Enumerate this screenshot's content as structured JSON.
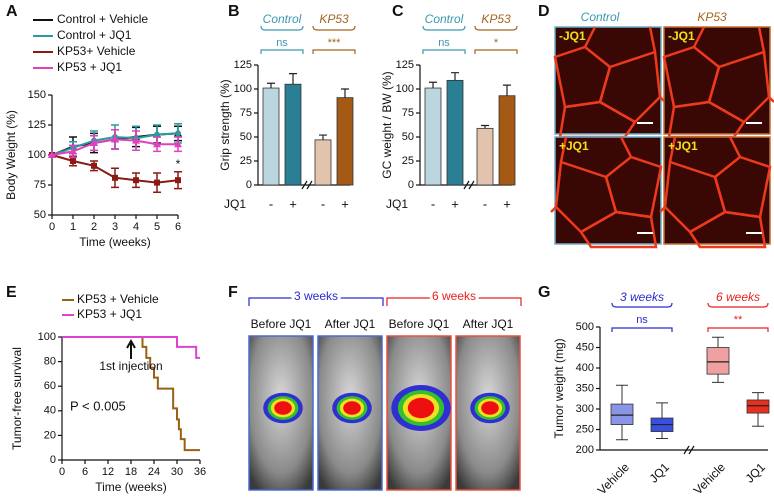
{
  "panel_labels": [
    "A",
    "B",
    "C",
    "D",
    "E",
    "F",
    "G"
  ],
  "chart_data": [
    {
      "type": "line",
      "ylabel": "Body Weight (%)",
      "xlabel": "Time (weeks)",
      "x": [
        0,
        1,
        2,
        3,
        4,
        5,
        6
      ],
      "xlim": [
        0,
        6
      ],
      "xticks": [
        0,
        1,
        2,
        3,
        4,
        5,
        6
      ],
      "ylim": [
        50,
        150
      ],
      "yticks": [
        50,
        75,
        100,
        125,
        150
      ],
      "annotation": "*",
      "series": [
        {
          "name": "Control + Vehicle",
          "color": "#111111",
          "marker": "triangle",
          "values": [
            100,
            107,
            110,
            113,
            115,
            117,
            118
          ],
          "errors": [
            0,
            8,
            8,
            8,
            8,
            7,
            6
          ]
        },
        {
          "name": "Control + JQ1",
          "color": "#2a9d9a",
          "marker": "circle",
          "values": [
            100,
            106,
            112,
            115,
            114,
            117,
            118
          ],
          "errors": [
            0,
            5,
            8,
            10,
            10,
            8,
            8
          ]
        },
        {
          "name": "KP53+ Vehicle",
          "color": "#8b1a12",
          "marker": "square",
          "values": [
            100,
            95,
            91,
            81,
            79,
            77,
            79
          ],
          "errors": [
            0,
            4,
            4,
            8,
            6,
            8,
            7
          ]
        },
        {
          "name": "KP53 + JQ1",
          "color": "#e040c0",
          "marker": "triangle",
          "values": [
            100,
            103,
            110,
            113,
            112,
            109,
            109
          ],
          "errors": [
            0,
            5,
            6,
            8,
            8,
            6,
            6
          ]
        }
      ]
    },
    {
      "type": "bar",
      "ylabel": "Grip strength (%)",
      "xlabel": "JQ1",
      "categories": [
        "-",
        "+",
        "-",
        "+"
      ],
      "values": [
        101,
        105,
        47,
        91
      ],
      "errors": [
        5,
        11,
        5,
        9
      ],
      "colors": [
        "#bcd6e0",
        "#2a7f95",
        "#e2c3ae",
        "#a45a14"
      ],
      "ylim": [
        0,
        125
      ],
      "yticks": [
        0,
        25,
        50,
        75,
        100,
        125
      ],
      "groups": [
        {
          "label": "Control",
          "color": "#3a9ab0",
          "sig": "ns"
        },
        {
          "label": "KP53",
          "color": "#a5651f",
          "sig": "***"
        }
      ]
    },
    {
      "type": "bar",
      "ylabel": "GC weight / BW (%)",
      "xlabel": "JQ1",
      "categories": [
        "-",
        "+",
        "-",
        "+"
      ],
      "values": [
        101,
        109,
        59,
        93
      ],
      "errors": [
        6,
        8,
        3,
        11
      ],
      "colors": [
        "#bcd6e0",
        "#2a7f95",
        "#e2c3ae",
        "#a45a14"
      ],
      "ylim": [
        0,
        125
      ],
      "yticks": [
        0,
        25,
        50,
        75,
        100,
        125
      ],
      "groups": [
        {
          "label": "Control",
          "color": "#3a9ab0",
          "sig": "ns"
        },
        {
          "label": "KP53",
          "color": "#a5651f",
          "sig": "*"
        }
      ]
    },
    {
      "type": "survival",
      "ylabel": "Tumor-free survival",
      "xlabel": "Time (weeks)",
      "xlim": [
        0,
        36
      ],
      "xticks": [
        0,
        6,
        12,
        18,
        24,
        30,
        36
      ],
      "ylim": [
        0,
        100
      ],
      "yticks": [
        0,
        20,
        40,
        60,
        80,
        100
      ],
      "annotations": [
        "1st injection",
        "P < 0.005"
      ],
      "series": [
        {
          "name": "KP53 + Vehicle",
          "color": "#9a6014",
          "x": [
            0,
            21,
            22,
            23,
            24,
            25,
            29,
            30,
            30.5,
            31,
            32,
            36
          ],
          "values": [
            100,
            92,
            83,
            75,
            67,
            58,
            42,
            33,
            25,
            17,
            8,
            8
          ]
        },
        {
          "name": "KP53 + JQ1",
          "color": "#e040d0",
          "x": [
            0,
            30,
            35,
            36
          ],
          "values": [
            100,
            92,
            83,
            83
          ]
        }
      ]
    },
    {
      "type": "box",
      "ylabel": "Tumor weight (mg)",
      "categories": [
        "Vehicle",
        "JQ1",
        "Vehicle",
        "JQ1"
      ],
      "colors": [
        "#8a95e8",
        "#3a4fe0",
        "#f0a0a0",
        "#e83020"
      ],
      "boxes": [
        {
          "min": 225,
          "q1": 262,
          "median": 285,
          "q3": 312,
          "max": 358
        },
        {
          "min": 228,
          "q1": 245,
          "median": 262,
          "q3": 278,
          "max": 315
        },
        {
          "min": 365,
          "q1": 385,
          "median": 415,
          "q3": 450,
          "max": 475
        },
        {
          "min": 258,
          "q1": 290,
          "median": 308,
          "q3": 322,
          "max": 340
        }
      ],
      "ylim": [
        200,
        500
      ],
      "yticks": [
        200,
        250,
        300,
        350,
        400,
        450,
        500
      ],
      "groups": [
        {
          "label": "3 weeks",
          "color": "#2a2ad0",
          "sig": "ns"
        },
        {
          "label": "6 weeks",
          "color": "#e82020",
          "sig": "**"
        }
      ]
    }
  ],
  "image_panels": {
    "D": {
      "columns": [
        "Control",
        "KP53"
      ],
      "tiles": [
        "-JQ1",
        "-JQ1",
        "+JQ1",
        "+JQ1"
      ]
    },
    "F": {
      "groups": [
        "3 weeks",
        "6 weeks"
      ],
      "tiles": [
        "Before JQ1",
        "After JQ1",
        "Before JQ1",
        "After JQ1"
      ]
    }
  }
}
